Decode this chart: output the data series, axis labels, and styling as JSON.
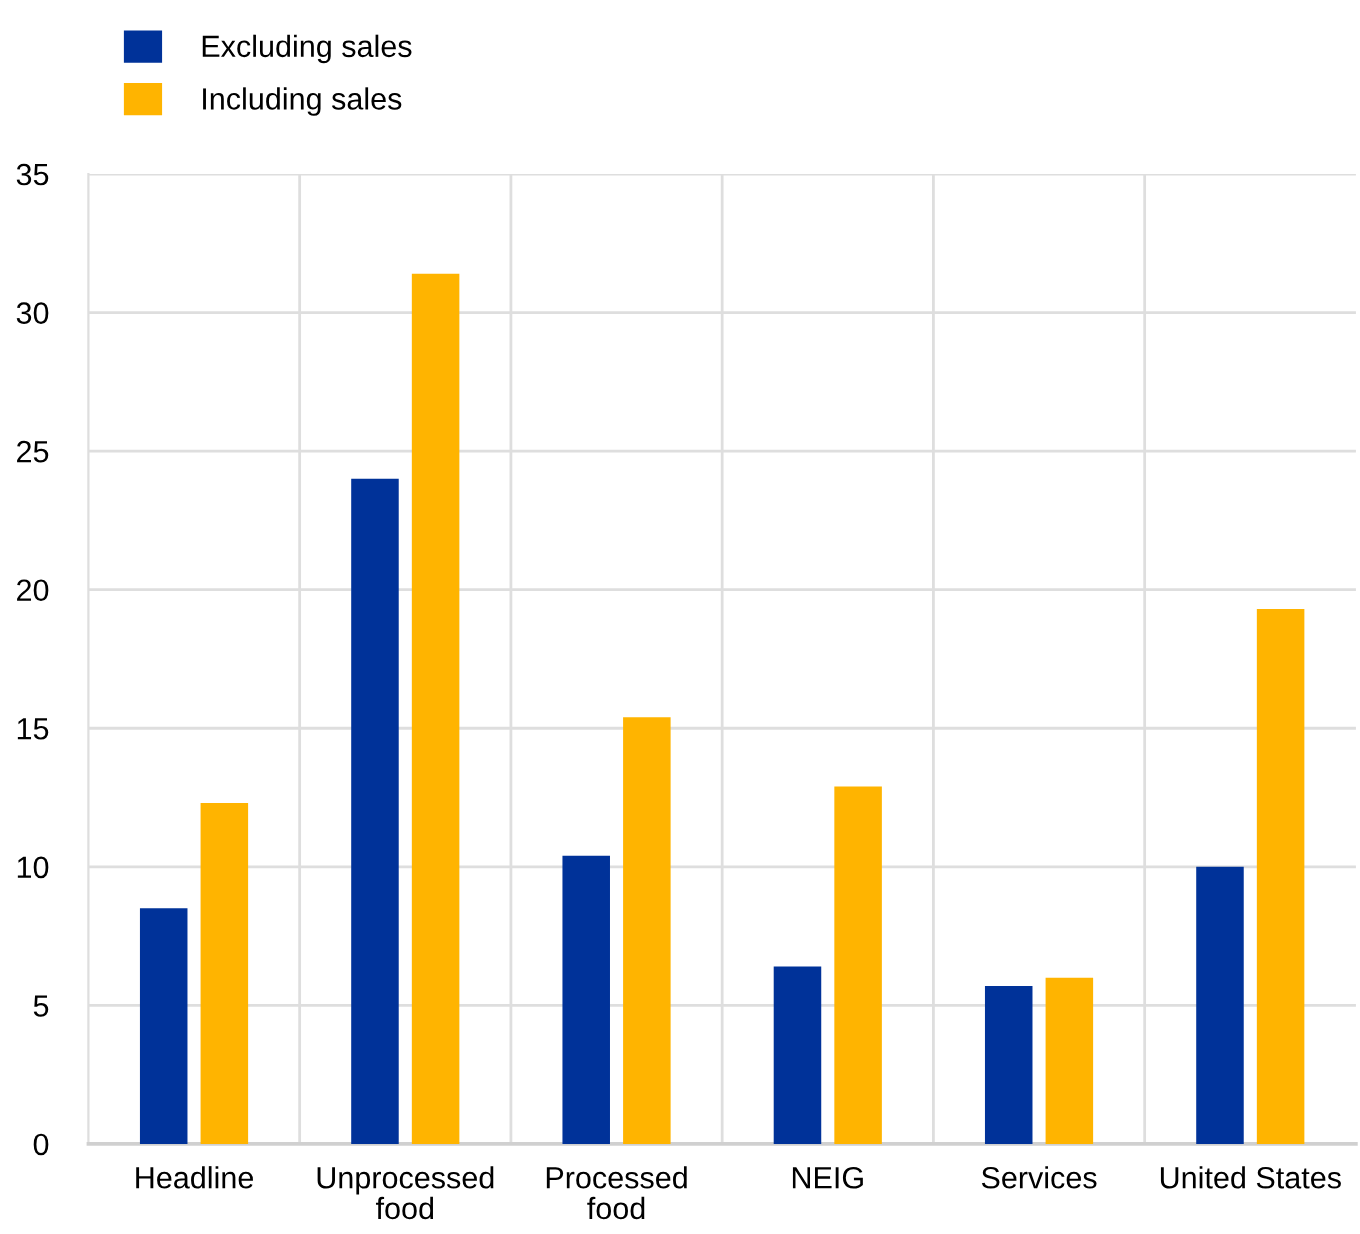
{
  "chart_data": {
    "type": "bar",
    "categories": [
      "Headline",
      "Unprocessed\nfood",
      "Processed\nfood",
      "NEIG",
      "Services",
      "United States"
    ],
    "series": [
      {
        "name": "Excluding sales",
        "color": "#003299",
        "values": [
          8.5,
          24.0,
          10.4,
          6.4,
          5.7,
          10.0
        ]
      },
      {
        "name": "Including sales",
        "color": "#ffb400",
        "values": [
          12.3,
          31.4,
          15.4,
          12.9,
          6.0,
          19.3
        ]
      }
    ],
    "ylim": [
      0,
      35
    ],
    "yticks": [
      0,
      5,
      10,
      15,
      20,
      25,
      30,
      35
    ],
    "grid": true,
    "legend": "top left"
  }
}
